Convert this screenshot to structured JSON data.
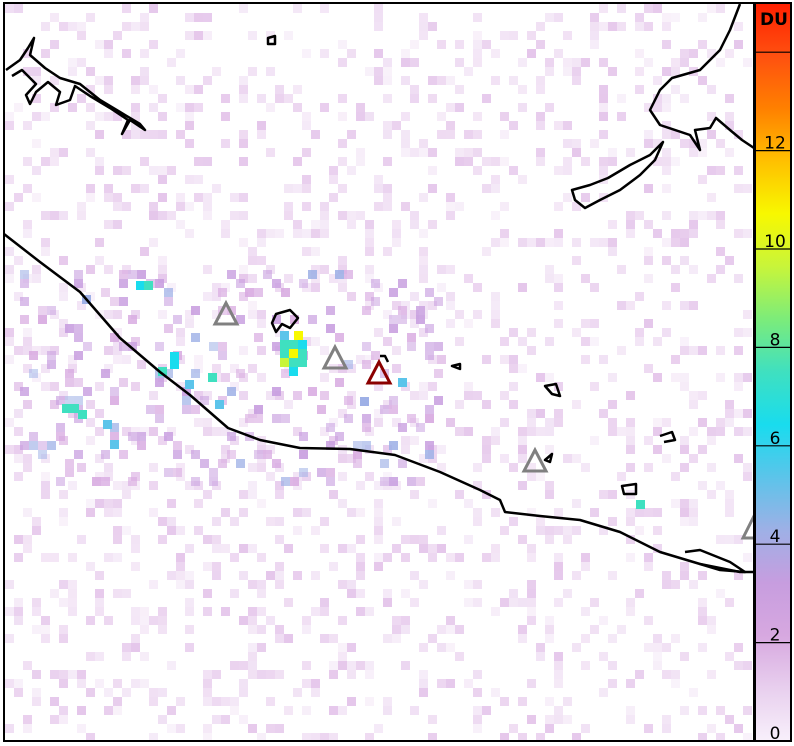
{
  "colorbar": {
    "unit": "DU",
    "range": [
      0,
      15
    ],
    "ticks": [
      0,
      2,
      4,
      6,
      8,
      10,
      12,
      14
    ],
    "tick_labels": [
      "0",
      "2",
      "4",
      "6",
      "8",
      "10",
      "12",
      ""
    ],
    "colors": [
      "#f8f0fb",
      "#e8cfee",
      "#d7a8e0",
      "#c79ddf",
      "#9eb0e6",
      "#5cc4ea",
      "#19dcee",
      "#3fe0c0",
      "#7cec7a",
      "#c8f53a",
      "#f8f800",
      "#ffc000",
      "#ff8000",
      "#ff5010",
      "#ff2000"
    ]
  },
  "volcanoes": {
    "active_color": "#8b0000",
    "other_color": "#808080"
  },
  "coastline_color": "#000000"
}
